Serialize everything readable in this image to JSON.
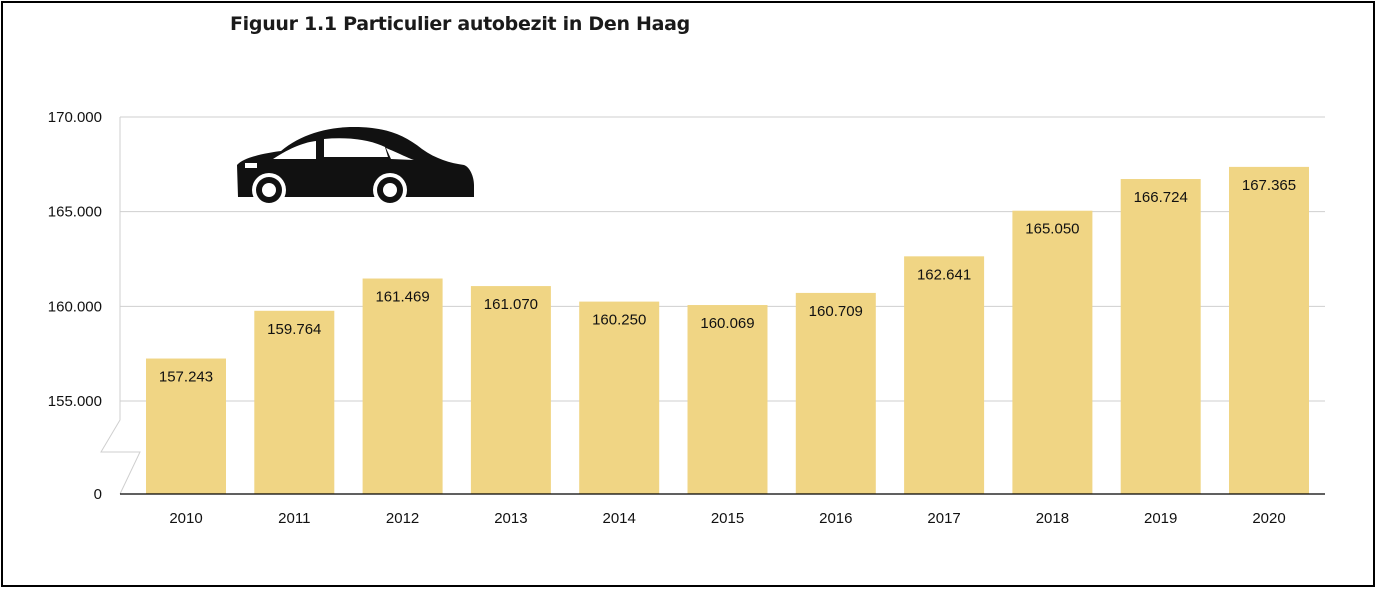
{
  "chart_data": {
    "type": "bar",
    "title": "Figuur 1.1 Particulier autobezit in Den Haag",
    "categories": [
      "2010",
      "2011",
      "2012",
      "2013",
      "2014",
      "2015",
      "2016",
      "2017",
      "2018",
      "2019",
      "2020"
    ],
    "values": [
      157243,
      159764,
      161469,
      161070,
      160250,
      160069,
      160709,
      162641,
      165050,
      166724,
      167365
    ],
    "data_labels": [
      "157.243",
      "159.764",
      "161.469",
      "161.070",
      "160.250",
      "160.069",
      "160.709",
      "162.641",
      "165.050",
      "166.724",
      "167.365"
    ],
    "y_ticks": [
      {
        "value": 170000,
        "label": "170.000"
      },
      {
        "value": 165000,
        "label": "165.000"
      },
      {
        "value": 160000,
        "label": "160.000"
      },
      {
        "value": 155000,
        "label": "155.000"
      },
      {
        "value": 0,
        "label": "0"
      }
    ],
    "ylim": [
      0,
      170000
    ],
    "axis_break": {
      "between": [
        0,
        155000
      ],
      "shown_as": "zigzag"
    },
    "grid": true,
    "colors": {
      "bar": "#f0d584",
      "grid": "#cfcfcf",
      "axis": "#000000"
    },
    "icon": "car-icon"
  }
}
